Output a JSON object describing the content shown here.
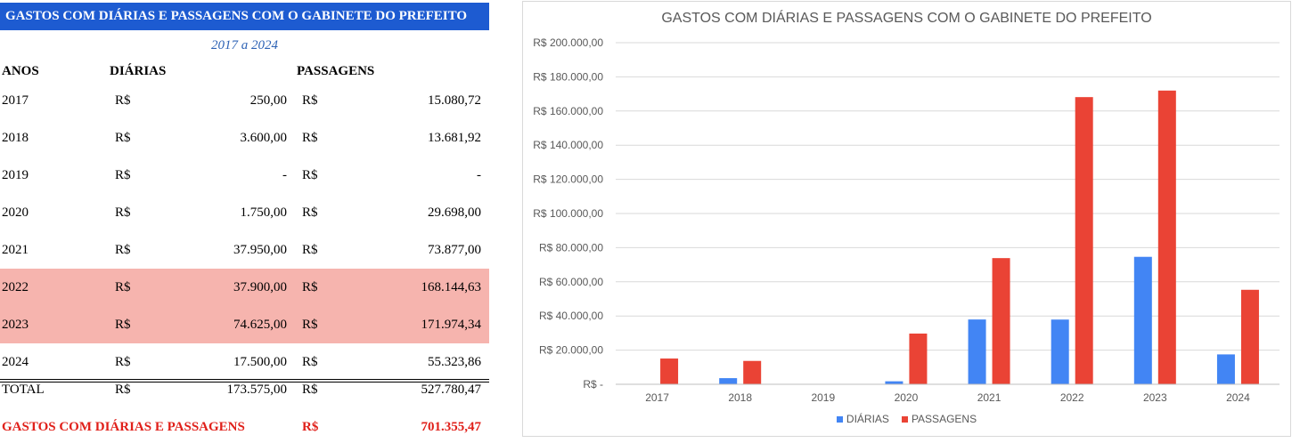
{
  "table": {
    "title": "GASTOS COM DIÁRIAS E PASSAGENS COM O GABINETE DO PREFEITO",
    "subtitle": "2017 a 2024",
    "headers": {
      "anos": "ANOS",
      "diarias": "DIÁRIAS",
      "passagens": "PASSAGENS"
    },
    "currency": "R$",
    "rows": [
      {
        "year": "2017",
        "diarias": "250,00",
        "passagens": "15.080,72",
        "highlight": false
      },
      {
        "year": "2018",
        "diarias": "3.600,00",
        "passagens": "13.681,92",
        "highlight": false
      },
      {
        "year": "2019",
        "diarias": "-",
        "passagens": "-",
        "highlight": false
      },
      {
        "year": "2020",
        "diarias": "1.750,00",
        "passagens": "29.698,00",
        "highlight": false
      },
      {
        "year": "2021",
        "diarias": "37.950,00",
        "passagens": "73.877,00",
        "highlight": false
      },
      {
        "year": "2022",
        "diarias": "37.900,00",
        "passagens": "168.144,63",
        "highlight": true
      },
      {
        "year": "2023",
        "diarias": "74.625,00",
        "passagens": "171.974,34",
        "highlight": true
      },
      {
        "year": "2024",
        "diarias": "17.500,00",
        "passagens": "55.323,86",
        "highlight": false
      }
    ],
    "total": {
      "label": "TOTAL",
      "diarias": "173.575,00",
      "passagens": "527.780,47"
    },
    "grand_total": {
      "label": "GASTOS COM DIÁRIAS E PASSAGENS",
      "value": "701.355,47"
    },
    "colors": {
      "title_bg": "#1d5bd1",
      "highlight": "#f6b4ae",
      "grand_total": "#e0201a"
    }
  },
  "chart_data": {
    "type": "bar",
    "title": "GASTOS COM DIÁRIAS E PASSAGENS COM O GABINETE DO PREFEITO",
    "categories": [
      "2017",
      "2018",
      "2019",
      "2020",
      "2021",
      "2022",
      "2023",
      "2024"
    ],
    "series": [
      {
        "name": "DIÁRIAS",
        "color": "#4285f4",
        "values": [
          250,
          3600,
          0,
          1750,
          37950,
          37900,
          74625,
          17500
        ]
      },
      {
        "name": "PASSAGENS",
        "color": "#ea4335",
        "values": [
          15080.72,
          13681.92,
          0,
          29698,
          73877,
          168144.63,
          171974.34,
          55323.86
        ]
      }
    ],
    "ylim": [
      0,
      200000
    ],
    "y_ticks": [
      {
        "value": 0,
        "label": "R$ -"
      },
      {
        "value": 20000,
        "label": "R$ 20.000,00"
      },
      {
        "value": 40000,
        "label": "R$ 40.000,00"
      },
      {
        "value": 60000,
        "label": "R$ 60.000,00"
      },
      {
        "value": 80000,
        "label": "R$ 80.000,00"
      },
      {
        "value": 100000,
        "label": "R$ 100.000,00"
      },
      {
        "value": 120000,
        "label": "R$ 120.000,00"
      },
      {
        "value": 140000,
        "label": "R$ 140.000,00"
      },
      {
        "value": 160000,
        "label": "R$ 160.000,00"
      },
      {
        "value": 180000,
        "label": "R$ 180.000,00"
      },
      {
        "value": 200000,
        "label": "R$ 200.000,00"
      }
    ],
    "grid": true,
    "legend_position": "bottom"
  }
}
